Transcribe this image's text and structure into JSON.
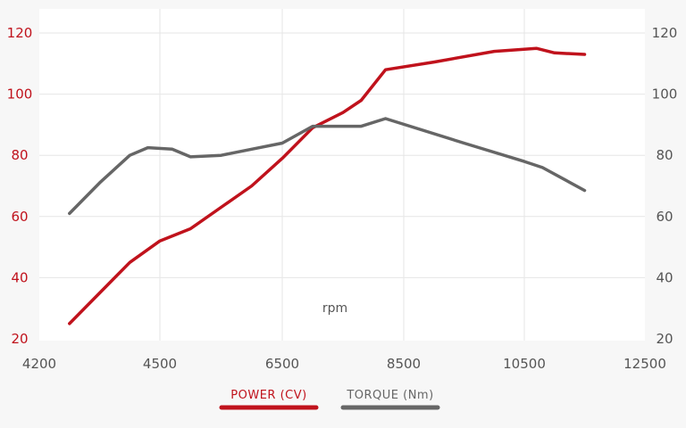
{
  "chart_data": {
    "type": "line",
    "title": "",
    "xlabel": "rpm",
    "x_ticks": [
      "4200",
      "4500",
      "6500",
      "8500",
      "10500",
      "12500"
    ],
    "y_left_ticks": [
      "120",
      "100",
      "80",
      "60",
      "40",
      "20"
    ],
    "y_right_ticks": [
      "120",
      "100",
      "80",
      "60",
      "40",
      "20"
    ],
    "ylim": [
      20,
      120
    ],
    "grid": true,
    "legend_position": "bottom-center",
    "series": [
      {
        "name": "POWER (CV)",
        "color": "#c0121c",
        "points": [
          [
            3000,
            25
          ],
          [
            3500,
            35
          ],
          [
            4000,
            45
          ],
          [
            4500,
            52
          ],
          [
            5000,
            56
          ],
          [
            5500,
            63
          ],
          [
            6000,
            70
          ],
          [
            6500,
            79
          ],
          [
            7000,
            89
          ],
          [
            7500,
            94
          ],
          [
            7800,
            98
          ],
          [
            8200,
            108
          ],
          [
            9000,
            110.5
          ],
          [
            10000,
            114
          ],
          [
            10700,
            115
          ],
          [
            11000,
            113.5
          ],
          [
            11500,
            113
          ]
        ]
      },
      {
        "name": "TORQUE (Nm)",
        "color": "#666666",
        "points": [
          [
            3000,
            61
          ],
          [
            3500,
            71
          ],
          [
            4000,
            80
          ],
          [
            4300,
            82.5
          ],
          [
            4700,
            82
          ],
          [
            5000,
            79.5
          ],
          [
            5500,
            80
          ],
          [
            6000,
            82
          ],
          [
            6500,
            84
          ],
          [
            7000,
            89.5
          ],
          [
            7800,
            89.5
          ],
          [
            8200,
            92
          ],
          [
            9500,
            84
          ],
          [
            10500,
            78
          ],
          [
            10800,
            76
          ],
          [
            11500,
            68.5
          ]
        ]
      }
    ]
  }
}
